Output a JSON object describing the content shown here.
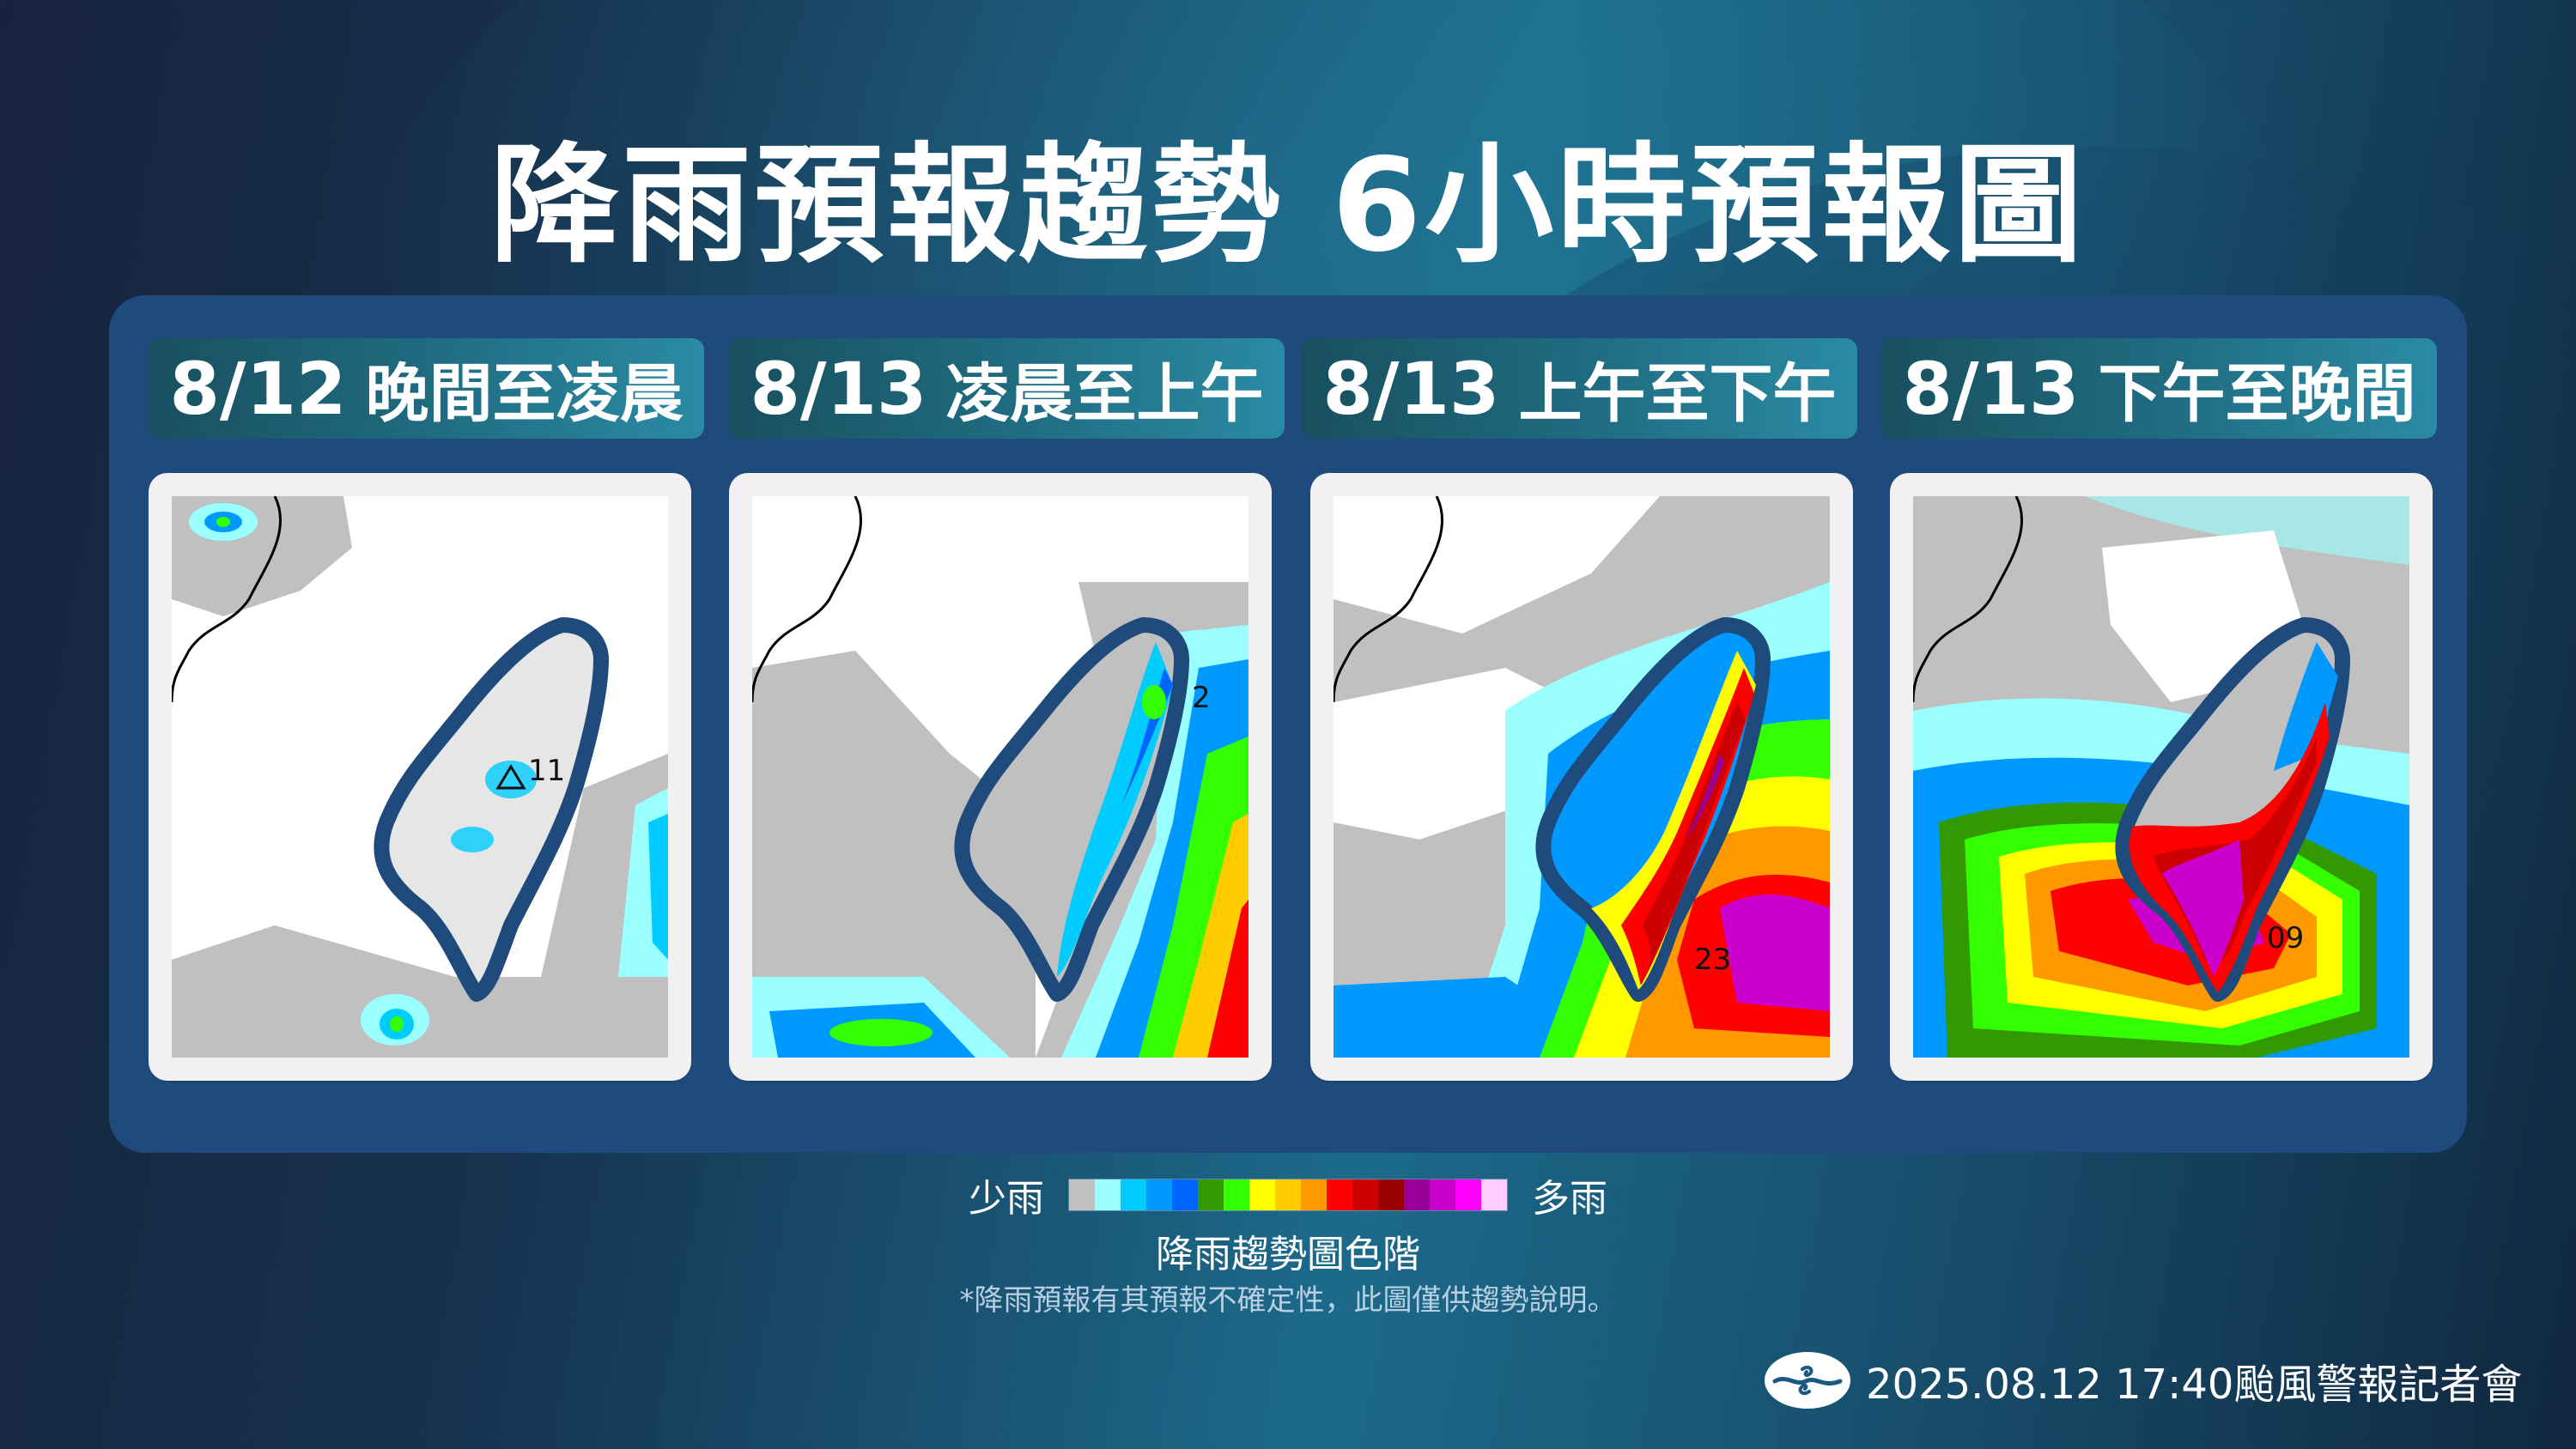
{
  "header": {
    "title": "降雨預報趨勢  6小時預報圖"
  },
  "panels": [
    {
      "date": "8/12",
      "period": "晚間至凌晨",
      "map_alt": "Taiwan rainfall forecast map with wind barbs, mostly light rain (gray/light blue)",
      "max_marker": "△",
      "max_value": "11",
      "intensity": "light"
    },
    {
      "date": "8/13",
      "period": "凌晨至上午",
      "map_alt": "Taiwan rainfall forecast map, moderate rain along eastern Taiwan, heavy rain offshore southeast",
      "max_marker": "▲",
      "max_value": "2",
      "intensity": "moderate"
    },
    {
      "date": "8/13",
      "period": "上午至下午",
      "map_alt": "Taiwan rainfall forecast map, heavy to extreme rain over central and southern mountains",
      "max_marker": "",
      "max_value": "23",
      "intensity": "heavy"
    },
    {
      "date": "8/13",
      "period": "下午至晚間",
      "map_alt": "Taiwan rainfall forecast map, extreme rain over southwestern and southern Taiwan",
      "max_marker": "",
      "max_value": "09",
      "intensity": "extreme"
    }
  ],
  "legend": {
    "low_label": "少雨",
    "high_label": "多雨",
    "title": "降雨趨勢圖色階",
    "colors": [
      "#C0C0C0",
      "#99FFFF",
      "#00CCFF",
      "#0099FF",
      "#0066FF",
      "#339900",
      "#33FF00",
      "#FFFF00",
      "#FFCC00",
      "#FF9900",
      "#FF0000",
      "#CC0000",
      "#990000",
      "#990099",
      "#CC00CC",
      "#FF00FF",
      "#FFCCFF"
    ]
  },
  "disclaimer": "*降雨預報有其預報不確定性，此圖僅供趨勢說明。",
  "footer": {
    "logo_icon": "cwa-logo-icon",
    "text": "2025.08.12  17:40颱風警報記者會"
  },
  "colors": {
    "container": "#1f4a7c",
    "tab_start": "#18505f",
    "tab_end": "#2a8ba4",
    "card_bg": "#f1f1f1",
    "taiwan_outline": "#1f4a7c"
  }
}
